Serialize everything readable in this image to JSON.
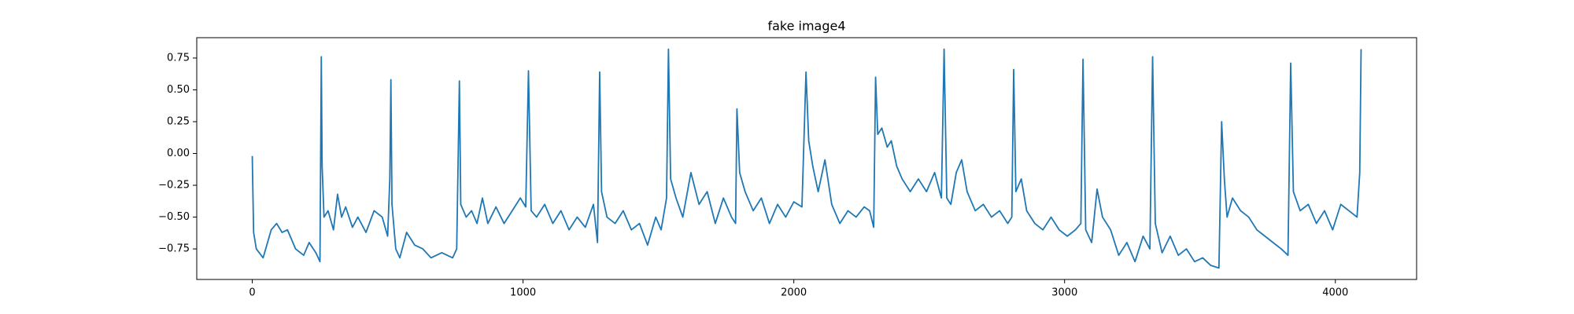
{
  "chart_data": {
    "type": "line",
    "title": "fake image4",
    "series": [
      {
        "color": "#1f77b4",
        "x": [
          0,
          5,
          15,
          40,
          70,
          90,
          110,
          130,
          160,
          190,
          210,
          235,
          250,
          255,
          258,
          265,
          280,
          300,
          315,
          330,
          345,
          370,
          390,
          420,
          450,
          480,
          500,
          508,
          512,
          516,
          530,
          545,
          570,
          600,
          630,
          660,
          700,
          740,
          755,
          765,
          770,
          790,
          810,
          830,
          850,
          870,
          900,
          930,
          960,
          990,
          1010,
          1020,
          1030,
          1050,
          1080,
          1110,
          1140,
          1170,
          1200,
          1230,
          1260,
          1275,
          1283,
          1290,
          1310,
          1340,
          1370,
          1400,
          1430,
          1460,
          1490,
          1510,
          1530,
          1537,
          1545,
          1565,
          1590,
          1620,
          1650,
          1680,
          1710,
          1740,
          1770,
          1785,
          1790,
          1800,
          1820,
          1850,
          1880,
          1910,
          1940,
          1970,
          2000,
          2030,
          2045,
          2055,
          2070,
          2090,
          2115,
          2140,
          2170,
          2200,
          2230,
          2260,
          2280,
          2295,
          2302,
          2310,
          2325,
          2345,
          2360,
          2380,
          2400,
          2430,
          2460,
          2490,
          2520,
          2545,
          2555,
          2565,
          2580,
          2600,
          2620,
          2640,
          2670,
          2700,
          2730,
          2760,
          2790,
          2805,
          2812,
          2820,
          2840,
          2860,
          2890,
          2920,
          2950,
          2980,
          3010,
          3040,
          3060,
          3068,
          3078,
          3100,
          3120,
          3140,
          3170,
          3200,
          3230,
          3260,
          3290,
          3315,
          3325,
          3335,
          3360,
          3390,
          3420,
          3450,
          3480,
          3510,
          3540,
          3570,
          3580,
          3590,
          3600,
          3620,
          3650,
          3680,
          3710,
          3740,
          3770,
          3800,
          3825,
          3835,
          3845,
          3870,
          3900,
          3930,
          3960,
          3990,
          4020,
          4050,
          4080,
          4090,
          4095
        ],
        "values": [
          -0.02,
          -0.62,
          -0.75,
          -0.82,
          -0.6,
          -0.55,
          -0.62,
          -0.6,
          -0.75,
          -0.8,
          -0.7,
          -0.78,
          -0.85,
          0.76,
          -0.1,
          -0.5,
          -0.45,
          -0.6,
          -0.32,
          -0.5,
          -0.42,
          -0.58,
          -0.5,
          -0.62,
          -0.45,
          -0.5,
          -0.65,
          -0.2,
          0.58,
          -0.4,
          -0.75,
          -0.82,
          -0.62,
          -0.72,
          -0.75,
          -0.82,
          -0.78,
          -0.82,
          -0.75,
          0.57,
          -0.4,
          -0.5,
          -0.45,
          -0.55,
          -0.35,
          -0.55,
          -0.42,
          -0.55,
          -0.45,
          -0.35,
          -0.42,
          0.65,
          -0.45,
          -0.5,
          -0.4,
          -0.55,
          -0.45,
          -0.6,
          -0.5,
          -0.58,
          -0.4,
          -0.7,
          0.64,
          -0.3,
          -0.5,
          -0.55,
          -0.45,
          -0.6,
          -0.55,
          -0.72,
          -0.5,
          -0.6,
          -0.35,
          0.82,
          -0.2,
          -0.35,
          -0.5,
          -0.15,
          -0.4,
          -0.3,
          -0.55,
          -0.35,
          -0.5,
          -0.55,
          0.35,
          -0.15,
          -0.3,
          -0.45,
          -0.35,
          -0.55,
          -0.4,
          -0.5,
          -0.38,
          -0.42,
          0.64,
          0.1,
          -0.1,
          -0.3,
          -0.05,
          -0.4,
          -0.55,
          -0.45,
          -0.5,
          -0.42,
          -0.45,
          -0.58,
          0.6,
          0.15,
          0.2,
          0.05,
          0.1,
          -0.1,
          -0.2,
          -0.3,
          -0.2,
          -0.3,
          -0.15,
          -0.35,
          0.82,
          -0.35,
          -0.4,
          -0.15,
          -0.05,
          -0.3,
          -0.45,
          -0.4,
          -0.5,
          -0.45,
          -0.55,
          -0.5,
          0.66,
          -0.3,
          -0.2,
          -0.45,
          -0.55,
          -0.6,
          -0.5,
          -0.6,
          -0.65,
          -0.6,
          -0.55,
          0.74,
          -0.6,
          -0.7,
          -0.28,
          -0.5,
          -0.6,
          -0.8,
          -0.7,
          -0.85,
          -0.65,
          -0.75,
          0.76,
          -0.55,
          -0.78,
          -0.65,
          -0.8,
          -0.75,
          -0.85,
          -0.82,
          -0.88,
          -0.9,
          0.25,
          -0.2,
          -0.5,
          -0.35,
          -0.45,
          -0.5,
          -0.6,
          -0.65,
          -0.7,
          -0.75,
          -0.8,
          0.71,
          -0.3,
          -0.45,
          -0.4,
          -0.55,
          -0.45,
          -0.6,
          -0.4,
          -0.45,
          -0.5,
          -0.15,
          0.82
        ]
      }
    ],
    "xlim": [
      -205,
      4300
    ],
    "xticks": [
      0,
      1000,
      2000,
      3000,
      4000
    ],
    "ylim": [
      -0.99,
      0.91
    ],
    "yticks": [
      {
        "value": -0.75,
        "label": "−0.75"
      },
      {
        "value": -0.5,
        "label": "−0.50"
      },
      {
        "value": -0.25,
        "label": "−0.25"
      },
      {
        "value": 0,
        "label": "0.00"
      },
      {
        "value": 0.25,
        "label": "0.25"
      },
      {
        "value": 0.5,
        "label": "0.50"
      },
      {
        "value": 0.75,
        "label": "0.75"
      }
    ]
  }
}
